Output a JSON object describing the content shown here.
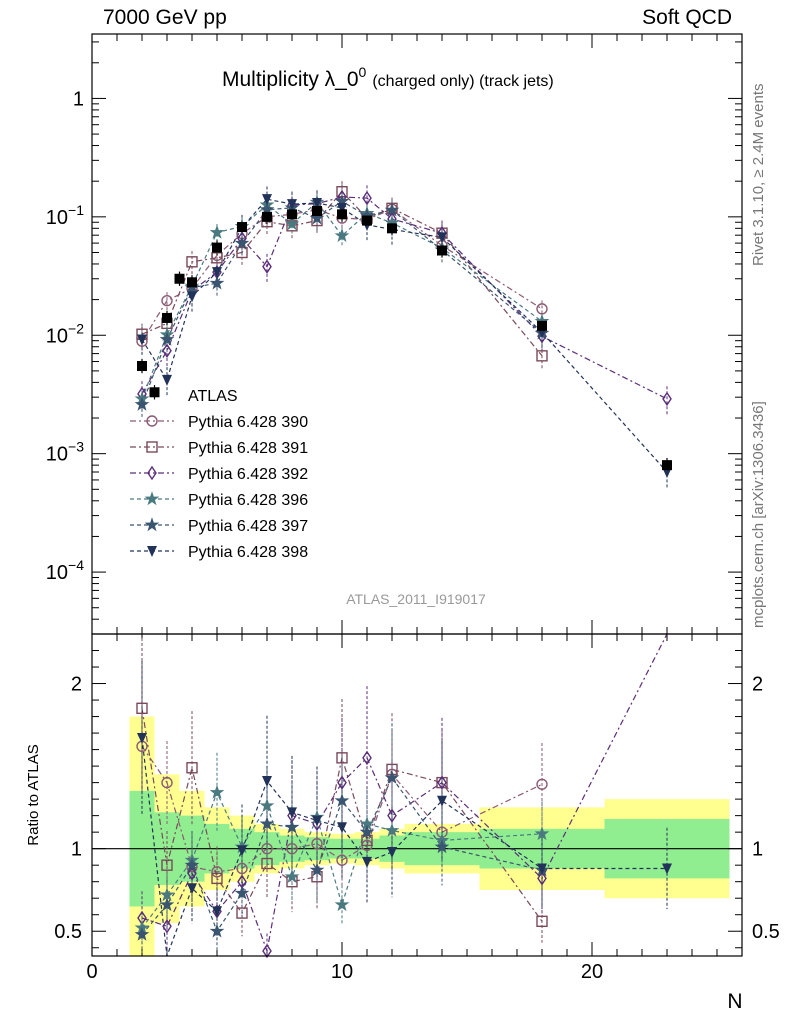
{
  "header": {
    "left": "7000 GeV pp",
    "right": "Soft QCD"
  },
  "side_labels": {
    "rivet": "Rivet 3.1.10, ≥ 2.4M events",
    "mcplots": "mcplots.cern.ch [arXiv:1306.3436]"
  },
  "chart_data": {
    "type": "scatter",
    "title": "Multiplicity λ_0⁰ (charged only) (track jets)",
    "title_main": "Multiplicity λ_0",
    "title_sup": "0",
    "title_small": "(charged only) (track jets)",
    "analysis_tag": "ATLAS_2011_I919017",
    "xlabel": "N",
    "ylabel": "",
    "ratio_ylabel": "Ratio to ATLAS",
    "xlim": [
      0,
      26
    ],
    "ylim": [
      3e-05,
      3.5
    ],
    "log_y": true,
    "ratio_ylim": [
      0.35,
      2.3
    ],
    "x_ticks": [
      "0",
      "10",
      "20"
    ],
    "y_ticks": [
      "10^-4",
      "10^-3",
      "10^-2",
      "10^-1",
      "1"
    ],
    "ratio_ticks": [
      "0.5",
      "1",
      "2"
    ],
    "legend_position": "middle-left",
    "data": {
      "name": "ATLAS",
      "x": [
        2,
        2.5,
        3,
        3.5,
        4,
        5,
        6,
        7,
        8,
        9,
        10,
        11,
        12,
        14,
        18,
        23
      ],
      "y": [
        0.0055,
        0.0033,
        0.014,
        0.03,
        0.028,
        0.055,
        0.082,
        0.1,
        0.105,
        0.112,
        0.105,
        0.093,
        0.08,
        0.052,
        0.012,
        0.0008
      ],
      "band_edges": [
        1.5,
        2.5,
        3.5,
        4.5,
        5.5,
        6.5,
        7.5,
        8.5,
        9.5,
        10.5,
        11.5,
        12.5,
        15.5,
        20.5,
        25.5
      ],
      "band_green": [
        0.35,
        0.22,
        0.2,
        0.15,
        0.12,
        0.1,
        0.08,
        0.07,
        0.06,
        0.06,
        0.08,
        0.1,
        0.12,
        0.18,
        0.45
      ],
      "band_yellow": [
        0.8,
        0.45,
        0.35,
        0.25,
        0.2,
        0.15,
        0.12,
        0.1,
        0.09,
        0.1,
        0.12,
        0.15,
        0.25,
        0.3,
        1.0
      ]
    },
    "series": [
      {
        "name": "Pythia 6.428 390",
        "marker": "circle",
        "color": "#8B5A73",
        "dash": "6,3,2,3",
        "x": [
          2,
          3,
          4,
          5,
          6,
          7,
          8,
          9,
          10,
          11,
          12,
          14,
          18
        ],
        "ratio": [
          1.62,
          1.4,
          0.89,
          0.86,
          0.88,
          1.0,
          1.0,
          1.03,
          0.93,
          1.02,
          1.45,
          1.1,
          1.39
        ],
        "y": [
          0.0089,
          0.0196,
          0.0249,
          0.0473,
          0.0722,
          0.1,
          0.105,
          0.115,
          0.0977,
          0.0949,
          0.116,
          0.0572,
          0.0167
        ]
      },
      {
        "name": "Pythia 6.428 391",
        "marker": "square",
        "color": "#7A4A5A",
        "dash": "6,3,2,3",
        "x": [
          2,
          3,
          4,
          5,
          6,
          7,
          8,
          9,
          10,
          11,
          12,
          14,
          18
        ],
        "ratio": [
          1.85,
          0.9,
          1.49,
          0.82,
          0.61,
          0.91,
          0.8,
          0.83,
          1.55,
          1.05,
          1.48,
          1.4,
          0.56
        ],
        "y": [
          0.0102,
          0.0126,
          0.0417,
          0.0451,
          0.05,
          0.091,
          0.084,
          0.093,
          0.163,
          0.0977,
          0.118,
          0.0728,
          0.0067
        ]
      },
      {
        "name": "Pythia 6.428 392",
        "marker": "diamond",
        "color": "#5B2D7A",
        "dash": "6,3,2,3",
        "x": [
          2,
          3,
          4,
          5,
          6,
          7,
          8,
          9,
          10,
          11,
          12,
          14,
          18,
          23
        ],
        "ratio": [
          0.58,
          0.53,
          0.85,
          0.62,
          0.8,
          0.38,
          1.2,
          1.15,
          1.4,
          1.55,
          1.2,
          1.4,
          0.82,
          3.6
        ],
        "y": [
          0.0032,
          0.0074,
          0.0238,
          0.0341,
          0.0656,
          0.038,
          0.126,
          0.129,
          0.147,
          0.144,
          0.096,
          0.0728,
          0.0098,
          0.0029
        ]
      },
      {
        "name": "Pythia 6.428 396",
        "marker": "star",
        "color": "#4A7A80",
        "dash": "4,3",
        "x": [
          2,
          3,
          4,
          5,
          6,
          7,
          8,
          9,
          10,
          11,
          12,
          14,
          18
        ],
        "ratio": [
          0.52,
          0.72,
          0.93,
          1.34,
          1.01,
          1.26,
          0.83,
          1.19,
          0.66,
          1.15,
          1.11,
          1.05,
          1.09
        ],
        "y": [
          0.0029,
          0.0101,
          0.026,
          0.0737,
          0.0828,
          0.126,
          0.0872,
          0.133,
          0.0693,
          0.107,
          0.0888,
          0.0546,
          0.0131
        ]
      },
      {
        "name": "Pythia 6.428 397",
        "marker": "star",
        "color": "#3A5570",
        "dash": "4,3",
        "x": [
          2,
          3,
          4,
          5,
          6,
          7,
          8,
          9,
          10,
          11,
          12,
          14,
          18
        ],
        "ratio": [
          0.48,
          0.66,
          0.9,
          0.5,
          0.73,
          1.15,
          1.13,
          0.87,
          1.29,
          1.1,
          1.43,
          1.01,
          0.87
        ],
        "y": [
          0.0026,
          0.0092,
          0.0252,
          0.0275,
          0.0599,
          0.115,
          0.119,
          0.0974,
          0.135,
          0.102,
          0.114,
          0.0525,
          0.0104
        ]
      },
      {
        "name": "Pythia 6.428 398",
        "marker": "tri-down",
        "color": "#22335A",
        "dash": "4,3",
        "x": [
          2,
          3,
          4,
          5,
          6,
          7,
          8,
          9,
          10,
          11,
          12,
          14,
          18,
          23
        ],
        "ratio": [
          1.67,
          0.3,
          0.76,
          0.62,
          0.99,
          1.41,
          1.22,
          1.17,
          1.13,
          0.92,
          0.98,
          1.29,
          0.88,
          0.88
        ],
        "y": [
          0.0092,
          0.0042,
          0.0213,
          0.0341,
          0.0812,
          0.141,
          0.128,
          0.131,
          0.119,
          0.0856,
          0.0784,
          0.0671,
          0.0106,
          0.0007
        ]
      }
    ]
  }
}
